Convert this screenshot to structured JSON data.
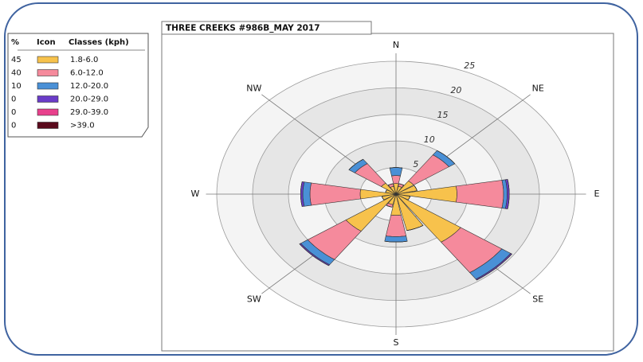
{
  "chart_data": {
    "type": "windrose",
    "title": "THREE CREEKS #986B_MAY 2017",
    "legend_header": [
      "%",
      "Icon",
      "Classes (kph)"
    ],
    "categories": [
      "N",
      null,
      "NE",
      null,
      "E",
      null,
      "SE",
      null,
      "S",
      null,
      "SW",
      null,
      "W",
      null,
      "NW",
      null
    ],
    "rlim": [
      0,
      25
    ],
    "rticks": [
      5,
      10,
      15,
      20,
      25
    ],
    "series": [
      {
        "name": "1.8-6.0",
        "percent": 45,
        "color": "#f7c24c",
        "values": [
          2,
          1.5,
          3,
          3,
          8.5,
          2,
          11,
          7,
          4,
          2,
          8.5,
          2,
          5,
          1.5,
          2.5,
          1.5
        ]
      },
      {
        "name": "6.0-12.0",
        "percent": 40,
        "color": "#f58a9c",
        "values": [
          1.5,
          0.5,
          6,
          0,
          6.5,
          0,
          7,
          0,
          4,
          0.5,
          6.5,
          0,
          7,
          0,
          4.5,
          0.5
        ]
      },
      {
        "name": "12.0-20.0",
        "percent": 10,
        "color": "#4a90d6",
        "values": [
          1.5,
          0,
          1,
          0,
          0.5,
          0,
          1.5,
          0,
          1,
          0,
          1.2,
          0,
          1,
          0,
          1,
          0
        ]
      },
      {
        "name": "20.0-29.0",
        "percent": 0,
        "color": "#6a3cc8",
        "values": [
          0,
          0,
          0,
          0,
          0.3,
          0,
          0.2,
          0,
          0,
          0,
          0.2,
          0,
          0.3,
          0,
          0,
          0
        ]
      },
      {
        "name": "29.0-39.0",
        "percent": 0,
        "color": "#e8408c",
        "values": [
          0,
          0,
          0,
          0,
          0,
          0,
          0,
          0,
          0,
          0,
          0,
          0,
          0,
          0,
          0,
          0
        ]
      },
      {
        "name": ">39.0",
        "percent": 0,
        "color": "#5a0a1c",
        "values": [
          0,
          0,
          0,
          0,
          0,
          0,
          0,
          0,
          0,
          0,
          0,
          0,
          0,
          0,
          0,
          0
        ]
      }
    ]
  }
}
